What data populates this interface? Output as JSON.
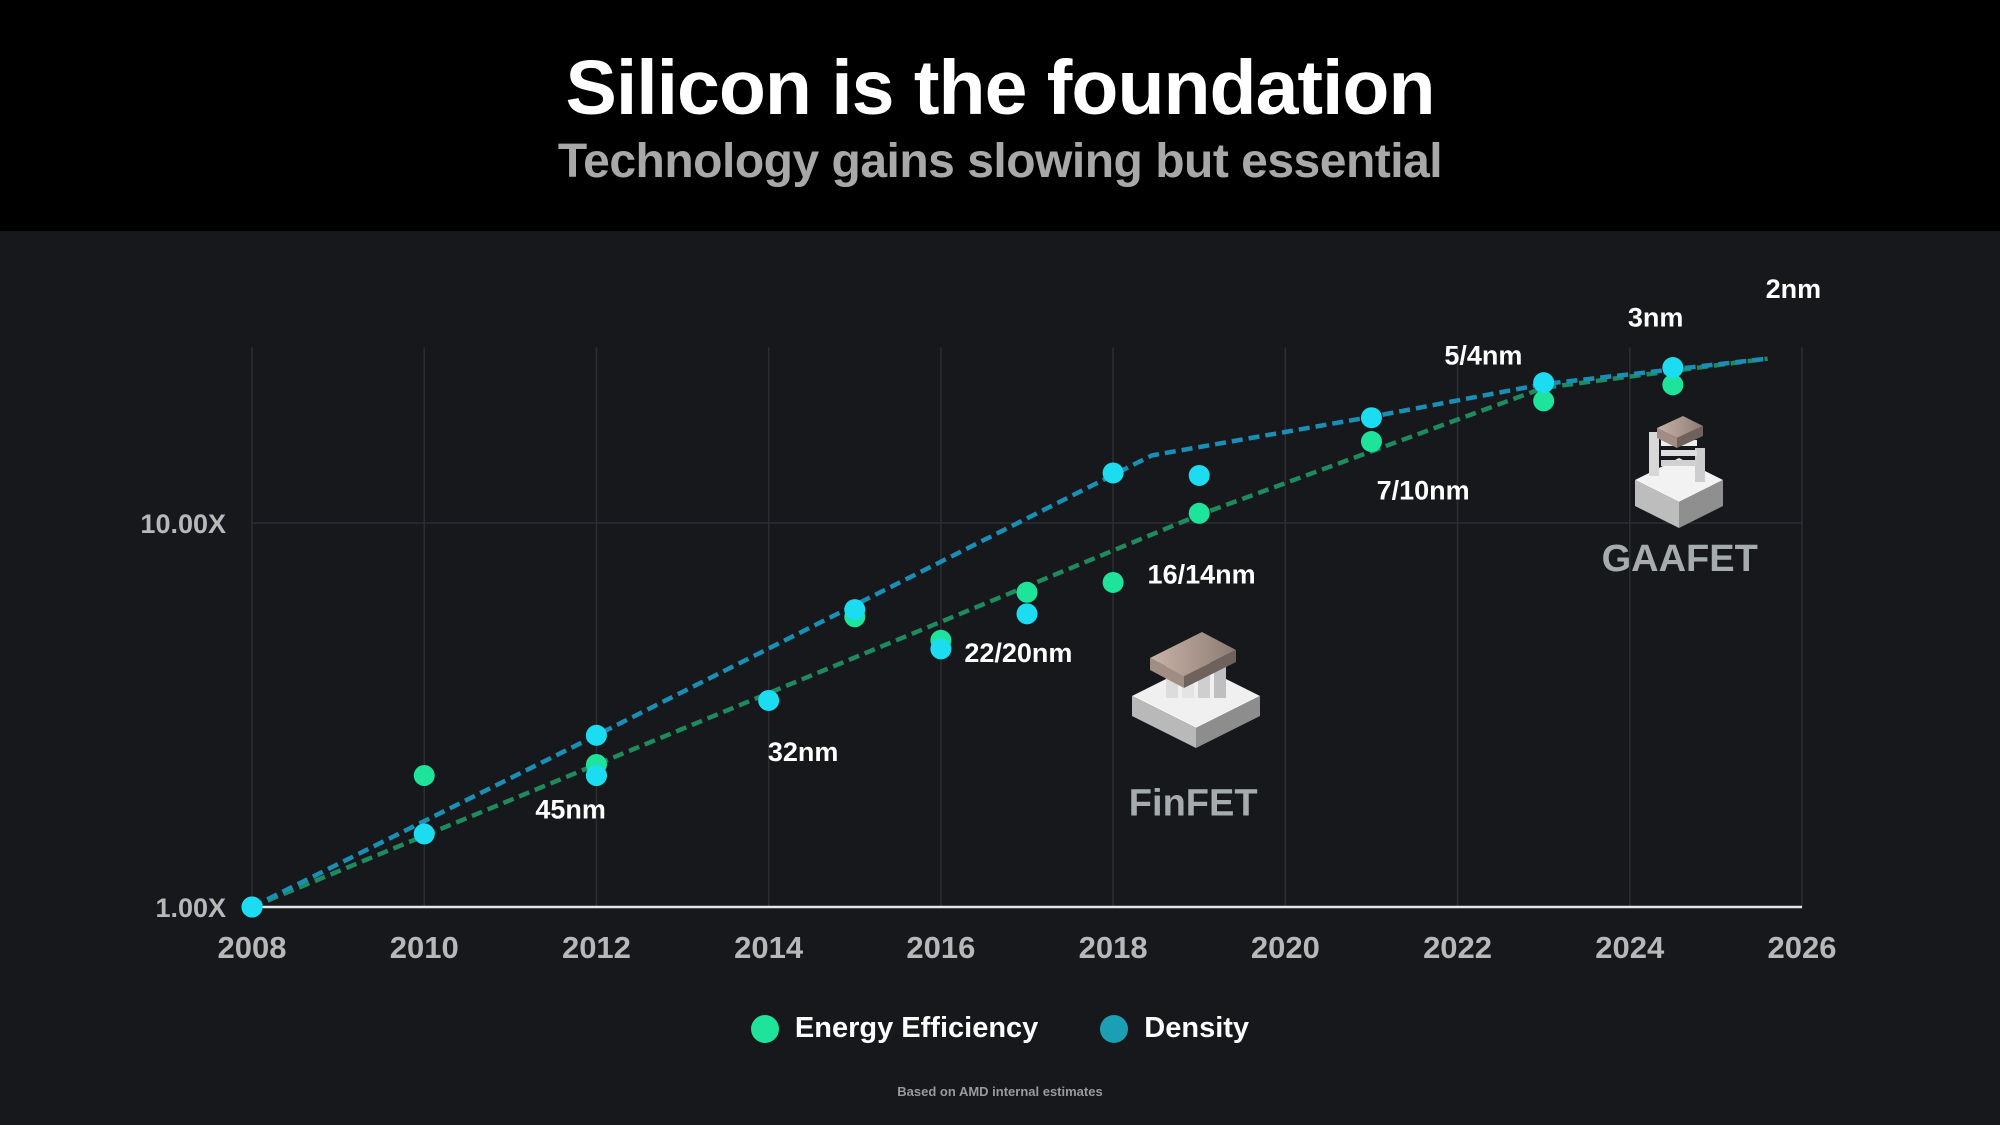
{
  "header": {
    "title": "Silicon is the foundation",
    "subtitle": "Technology gains slowing but essential"
  },
  "colors": {
    "background": "#16181c",
    "header_background": "#000000",
    "energy_efficiency": "#1de39b",
    "density": "#1bdcf0",
    "energy_trend": "#1e8a5e",
    "density_trend": "#1a8fb5",
    "legend_density": "#1a9fb5"
  },
  "chart_data": {
    "type": "scatter",
    "title": "Silicon is the foundation",
    "subtitle": "Technology gains slowing but essential",
    "xlabel": "",
    "ylabel": "",
    "xlim": [
      2008,
      2026
    ],
    "x_ticks": [
      "2008",
      "2010",
      "2012",
      "2014",
      "2016",
      "2018",
      "2020",
      "2022",
      "2024",
      "2026"
    ],
    "y_scale": "log",
    "ylim": [
      1,
      27
    ],
    "y_ticks": [
      {
        "value": 1,
        "label": "1.00X"
      },
      {
        "value": 10,
        "label": "10.00X"
      }
    ],
    "series": [
      {
        "name": "Energy Efficiency",
        "points": [
          {
            "x": 2008,
            "y": 1.0
          },
          {
            "x": 2010,
            "y": 2.2
          },
          {
            "x": 2012,
            "y": 2.35
          },
          {
            "x": 2012,
            "y": 2.2
          },
          {
            "x": 2015,
            "y": 5.7
          },
          {
            "x": 2016,
            "y": 4.95
          },
          {
            "x": 2017,
            "y": 6.6
          },
          {
            "x": 2018,
            "y": 7.0
          },
          {
            "x": 2019,
            "y": 10.6
          },
          {
            "x": 2021,
            "y": 16.3
          },
          {
            "x": 2023,
            "y": 20.8
          },
          {
            "x": 2024.5,
            "y": 22.9
          }
        ],
        "trend": [
          {
            "x": 2008,
            "y": 1.0
          },
          {
            "x": 2012,
            "y": 2.35
          },
          {
            "x": 2019,
            "y": 10.5
          },
          {
            "x": 2023,
            "y": 22.5
          },
          {
            "x": 2025.6,
            "y": 26.8
          }
        ]
      },
      {
        "name": "Density",
        "points": [
          {
            "x": 2008,
            "y": 1.0
          },
          {
            "x": 2010,
            "y": 1.55
          },
          {
            "x": 2012,
            "y": 2.2
          },
          {
            "x": 2012,
            "y": 2.8
          },
          {
            "x": 2014,
            "y": 3.45
          },
          {
            "x": 2015,
            "y": 5.95
          },
          {
            "x": 2016,
            "y": 4.7
          },
          {
            "x": 2017,
            "y": 5.8
          },
          {
            "x": 2018,
            "y": 13.5
          },
          {
            "x": 2019,
            "y": 13.3
          },
          {
            "x": 2021,
            "y": 18.8
          },
          {
            "x": 2023,
            "y": 23.2
          },
          {
            "x": 2024.5,
            "y": 25.4
          }
        ],
        "trend": [
          {
            "x": 2008,
            "y": 1.0
          },
          {
            "x": 2012,
            "y": 2.8
          },
          {
            "x": 2018.45,
            "y": 15.0
          },
          {
            "x": 2021,
            "y": 18.9
          },
          {
            "x": 2023,
            "y": 23.0
          },
          {
            "x": 2025.6,
            "y": 26.8
          }
        ]
      }
    ],
    "annotations": [
      {
        "text": "45nm",
        "x": 2011.7,
        "y": 1.7,
        "anchor": "middle"
      },
      {
        "text": "32nm",
        "x": 2014.4,
        "y": 2.4,
        "anchor": "middle"
      },
      {
        "text": "22/20nm",
        "x": 2016.9,
        "y": 4.35,
        "anchor": "middle"
      },
      {
        "text": "16/14nm",
        "x": 2018.4,
        "y": 6.95,
        "anchor": "start"
      },
      {
        "text": "7/10nm",
        "x": 2021.6,
        "y": 11.5,
        "anchor": "middle"
      },
      {
        "text": "5/4nm",
        "x": 2022.3,
        "y": 25.9,
        "anchor": "middle"
      },
      {
        "text": "3nm",
        "x": 2024.3,
        "y": 32.5,
        "anchor": "middle"
      },
      {
        "text": "2nm",
        "x": 2025.9,
        "y": 38.5,
        "anchor": "middle"
      },
      {
        "text": "FinFET",
        "x": 2018.93,
        "y": 1.73,
        "anchor": "middle",
        "style": "transistor"
      },
      {
        "text": "GAAFET",
        "x": 2024.58,
        "y": 7.5,
        "anchor": "middle",
        "style": "transistor"
      }
    ],
    "grid": true,
    "legend": "bottom-center"
  },
  "footnote": "Based on AMD internal estimates"
}
